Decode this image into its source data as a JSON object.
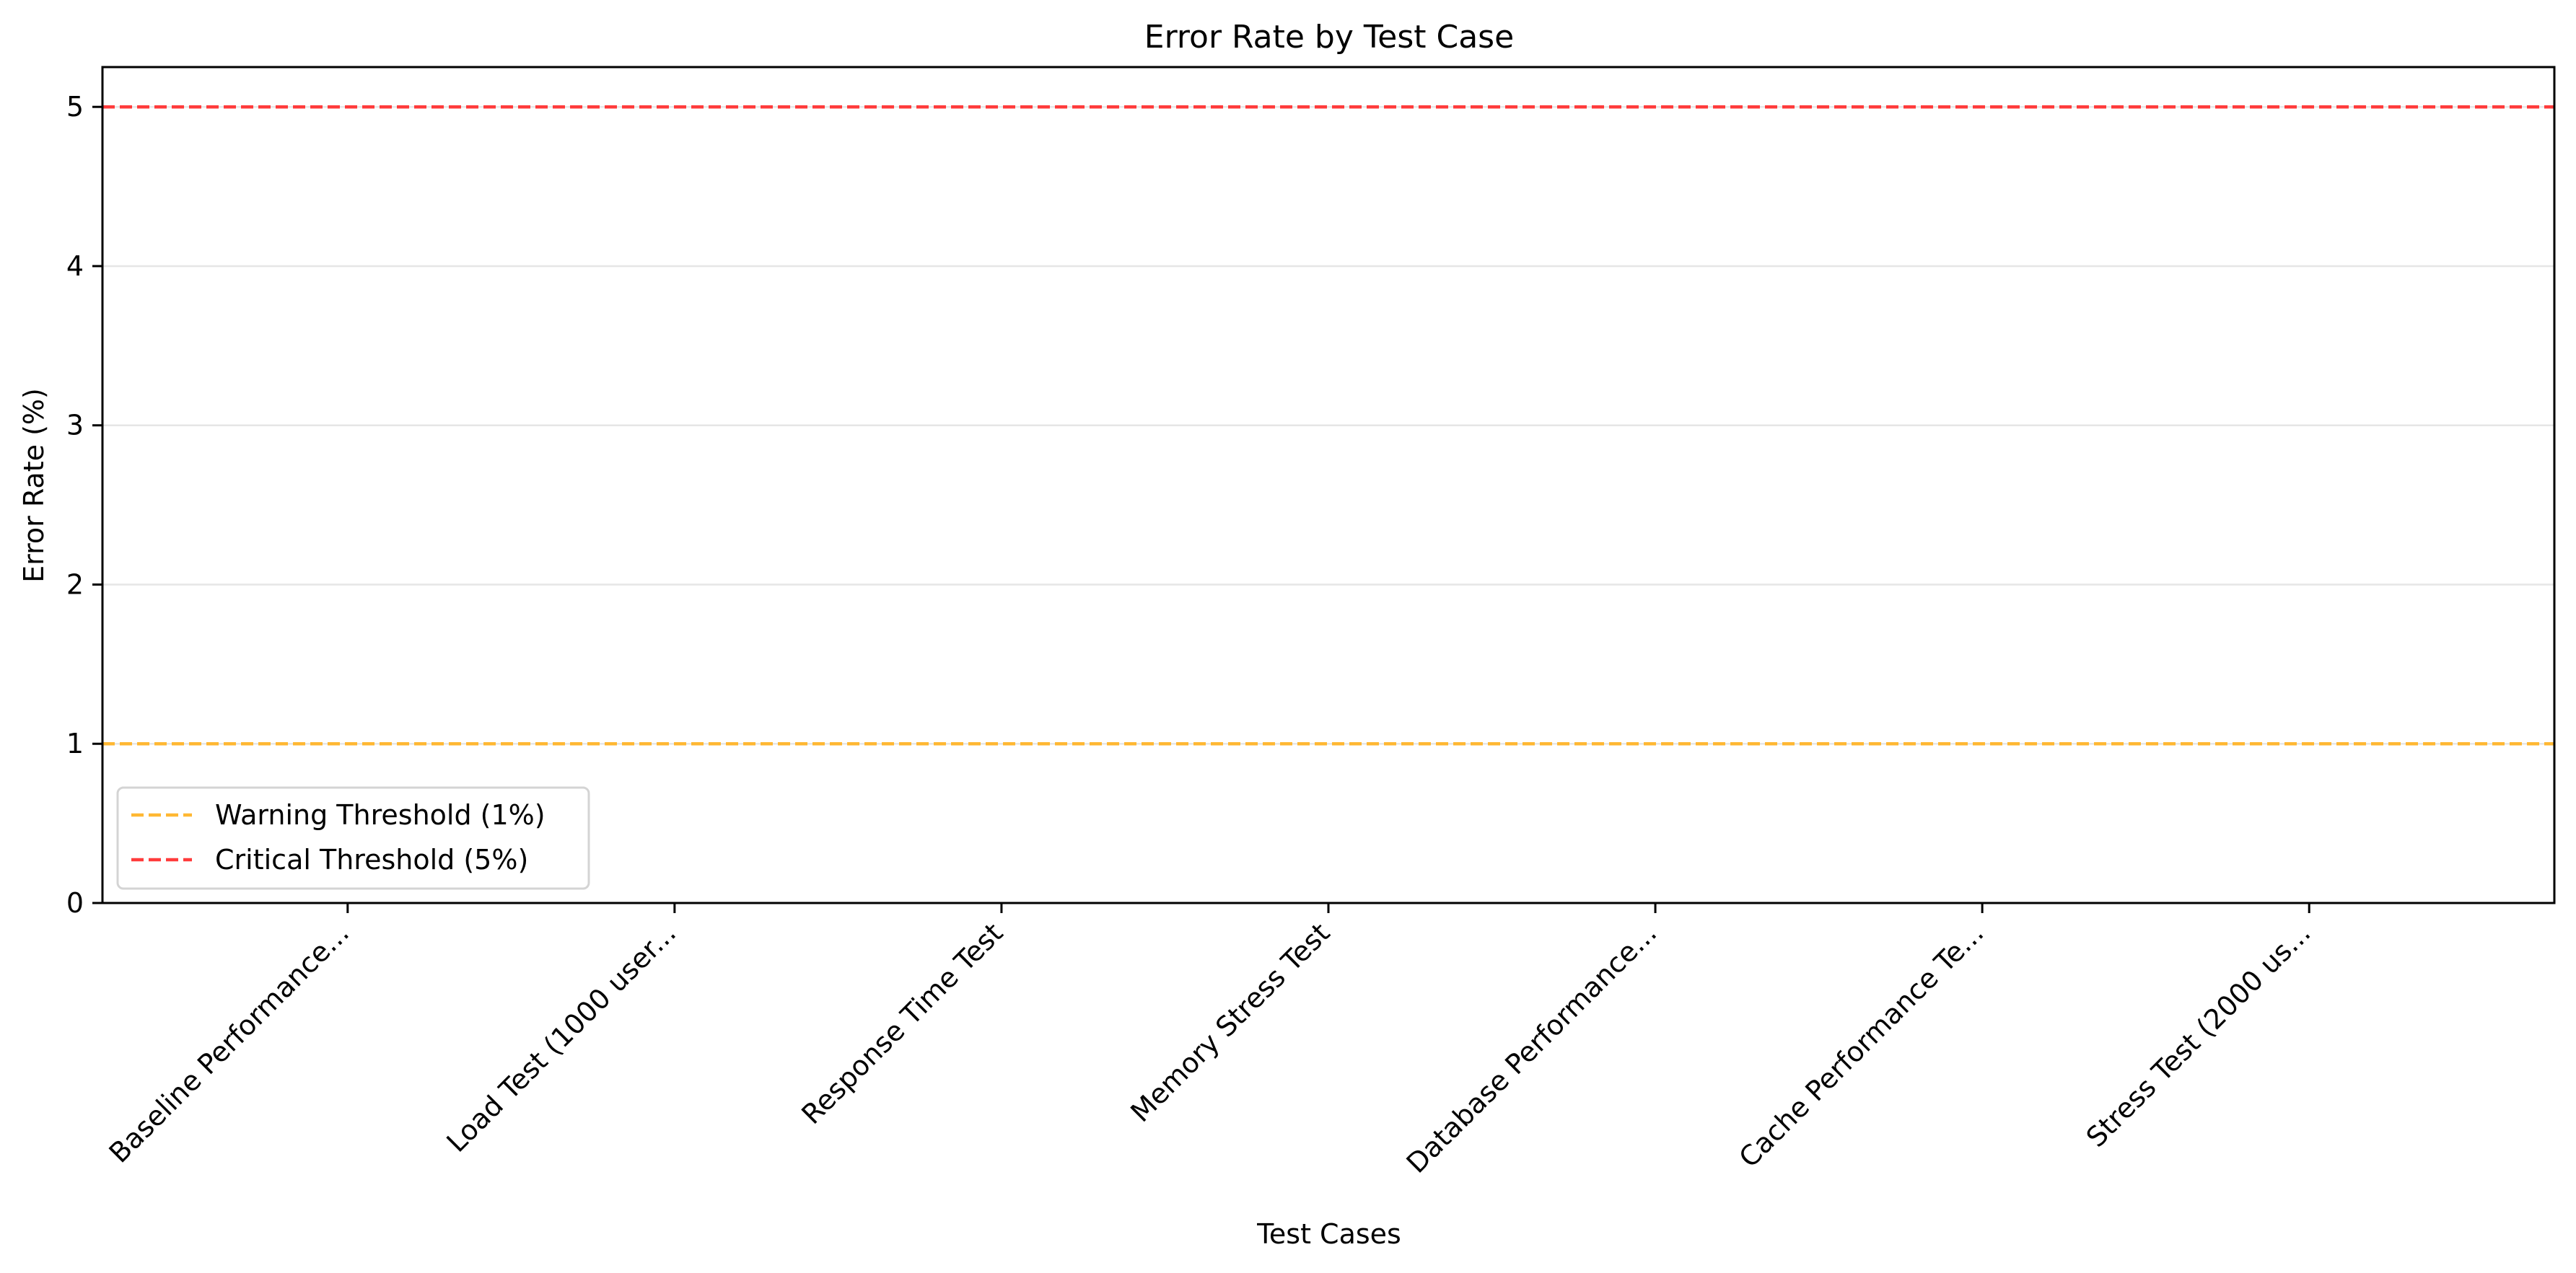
{
  "chart_data": {
    "type": "bar",
    "title": "Error Rate by Test Case",
    "xlabel": "Test Cases",
    "ylabel": "Error Rate (%)",
    "categories": [
      "Baseline Performance...",
      "Load Test (1000 user...",
      "Response Time Test",
      "Memory Stress Test",
      "Database Performance...",
      "Cache Performance Te...",
      "Stress Test (2000 us..."
    ],
    "values": [
      0,
      0,
      0,
      0,
      0,
      0,
      0
    ],
    "ylim": [
      0,
      5.25
    ],
    "yticks": [
      0,
      1,
      2,
      3,
      4,
      5
    ],
    "grid": "horizontal",
    "legend_position": "lower-left",
    "thresholds": [
      {
        "label": "Warning Threshold (1%)",
        "value": 1,
        "color": "#ffb833",
        "style": "dashed"
      },
      {
        "label": "Critical Threshold (5%)",
        "value": 5,
        "color": "#ff3b3b",
        "style": "dashed"
      }
    ]
  }
}
